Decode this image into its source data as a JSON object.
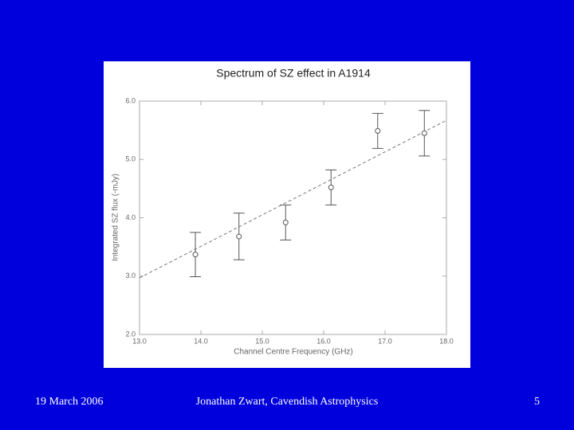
{
  "chart_data": {
    "type": "scatter",
    "title": "Spectrum of SZ effect in A1914",
    "x_label": "Channel Centre Frequency (GHz)",
    "y_label": "Integrated SZ flux (-mJy)",
    "xlim": [
      13,
      18
    ],
    "ylim": [
      2,
      6
    ],
    "xticks": [
      {
        "value": 13,
        "label": "13.0"
      },
      {
        "value": 14,
        "label": "14.0"
      },
      {
        "value": 15,
        "label": "15.0"
      },
      {
        "value": 16,
        "label": "16.0"
      },
      {
        "value": 17,
        "label": "17.0"
      },
      {
        "value": 18,
        "label": "18.0"
      }
    ],
    "yticks": [
      {
        "value": 2,
        "label": "2.0"
      },
      {
        "value": 3,
        "label": "3.0"
      },
      {
        "value": 4,
        "label": "4.0"
      },
      {
        "value": 5,
        "label": "5.0"
      },
      {
        "value": 6,
        "label": "6.0"
      }
    ],
    "series": [
      {
        "color": "#555555",
        "x": [
          13.91,
          14.62,
          15.38,
          16.12,
          16.88,
          17.64
        ],
        "values": [
          3.37,
          3.68,
          3.92,
          4.52,
          5.49,
          5.45
        ],
        "errors": [
          0.38,
          0.4,
          0.3,
          0.3,
          0.3,
          0.39
        ]
      }
    ],
    "fit": {
      "color": "#777777",
      "x": [
        13,
        18
      ],
      "values": [
        2.97,
        5.67
      ]
    }
  },
  "footer": {
    "date": "19 March 2006",
    "author": "Jonathan Zwart, Cavendish Astrophysics",
    "page": "5"
  }
}
